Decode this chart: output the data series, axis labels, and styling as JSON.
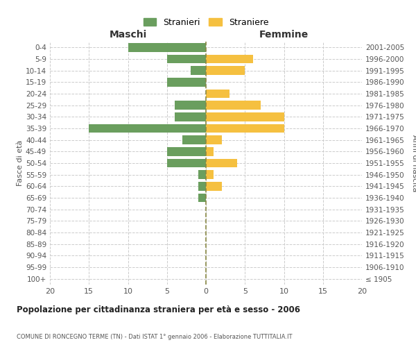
{
  "age_groups": [
    "100+",
    "95-99",
    "90-94",
    "85-89",
    "80-84",
    "75-79",
    "70-74",
    "65-69",
    "60-64",
    "55-59",
    "50-54",
    "45-49",
    "40-44",
    "35-39",
    "30-34",
    "25-29",
    "20-24",
    "15-19",
    "10-14",
    "5-9",
    "0-4"
  ],
  "birth_years": [
    "≤ 1905",
    "1906-1910",
    "1911-1915",
    "1916-1920",
    "1921-1925",
    "1926-1930",
    "1931-1935",
    "1936-1940",
    "1941-1945",
    "1946-1950",
    "1951-1955",
    "1956-1960",
    "1961-1965",
    "1966-1970",
    "1971-1975",
    "1976-1980",
    "1981-1985",
    "1986-1990",
    "1991-1995",
    "1996-2000",
    "2001-2005"
  ],
  "maschi": [
    0,
    0,
    0,
    0,
    0,
    0,
    0,
    1,
    1,
    1,
    5,
    5,
    3,
    15,
    4,
    4,
    0,
    5,
    2,
    5,
    10
  ],
  "femmine": [
    0,
    0,
    0,
    0,
    0,
    0,
    0,
    0,
    2,
    1,
    4,
    1,
    2,
    10,
    10,
    7,
    3,
    0,
    5,
    6,
    0
  ],
  "male_color": "#6a9e5e",
  "female_color": "#f5c040",
  "title": "Popolazione per cittadinanza straniera per età e sesso - 2006",
  "subtitle": "COMUNE DI RONCEGNO TERME (TN) - Dati ISTAT 1° gennaio 2006 - Elaborazione TUTTITALIA.IT",
  "ylabel_left": "Fasce di età",
  "ylabel_right": "Anni di nascita",
  "xlabel_maschi": "Maschi",
  "xlabel_femmine": "Femmine",
  "legend_maschi": "Stranieri",
  "legend_femmine": "Straniere",
  "xlim": 20,
  "background_color": "#ffffff",
  "grid_color": "#cccccc"
}
